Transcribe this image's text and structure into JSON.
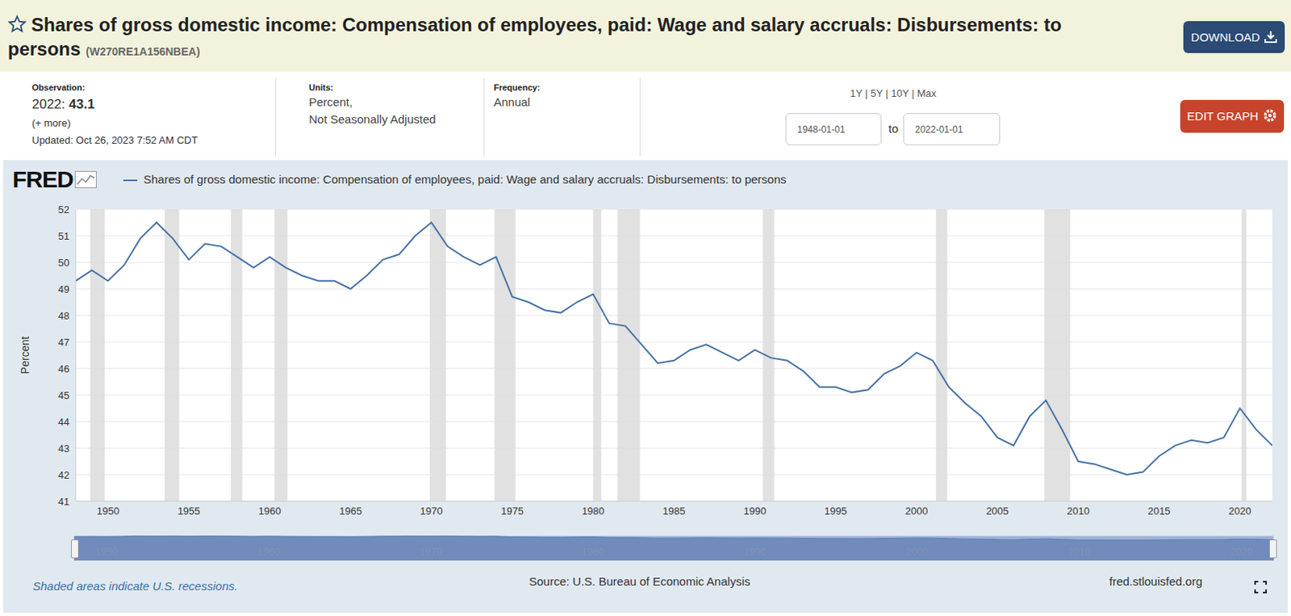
{
  "header": {
    "title": "Shares of gross domestic income: Compensation of employees, paid: Wage and salary accruals: Disbursements: to persons",
    "series_id": "(W270RE1A156NBEA)",
    "download": "DOWNLOAD"
  },
  "meta": {
    "observation_label": "Observation:",
    "observation_date": "2022:",
    "observation_value": 43.1,
    "more": "(+ more)",
    "updated": "Updated: Oct 26, 2023 7:52 AM CDT",
    "units_label": "Units:",
    "units": [
      "Percent,",
      "Not Seasonally Adjusted"
    ],
    "frequency_label": "Frequency:",
    "frequency": "Annual",
    "range_buttons": "1Y | 5Y | 10Y | Max",
    "date_from": "1948-01-01",
    "date_to_word": "to",
    "date_to": "2022-01-01",
    "edit_graph": "EDIT GRAPH"
  },
  "panel": {
    "logo": "FRED",
    "recession_note": "Shaded areas indicate U.S. recessions.",
    "source": "Source: U.S. Bureau of Economic Analysis",
    "site": "fred.stlouisfed.org"
  },
  "chart_data": {
    "type": "line",
    "y_label": "Percent",
    "x": [
      1948,
      1949,
      1950,
      1951,
      1952,
      1953,
      1954,
      1955,
      1956,
      1957,
      1958,
      1959,
      1960,
      1961,
      1962,
      1963,
      1964,
      1965,
      1966,
      1967,
      1968,
      1969,
      1970,
      1971,
      1972,
      1973,
      1974,
      1975,
      1976,
      1977,
      1978,
      1979,
      1980,
      1981,
      1982,
      1983,
      1984,
      1985,
      1986,
      1987,
      1988,
      1989,
      1990,
      1991,
      1992,
      1993,
      1994,
      1995,
      1996,
      1997,
      1998,
      1999,
      2000,
      2001,
      2002,
      2003,
      2004,
      2005,
      2006,
      2007,
      2008,
      2009,
      2010,
      2011,
      2012,
      2013,
      2014,
      2015,
      2016,
      2017,
      2018,
      2019,
      2020,
      2021,
      2022
    ],
    "series": [
      {
        "name": "Shares of gross domestic income: Compensation of employees, paid: Wage and salary accruals: Disbursements: to persons",
        "color": "#4572a7",
        "values": [
          49.3,
          49.7,
          49.3,
          49.9,
          50.9,
          51.5,
          50.9,
          50.1,
          50.7,
          50.6,
          50.2,
          49.8,
          50.2,
          49.8,
          49.5,
          49.3,
          49.3,
          49.0,
          49.5,
          50.1,
          50.3,
          51.0,
          51.5,
          50.6,
          50.2,
          49.9,
          50.2,
          48.7,
          48.5,
          48.2,
          48.1,
          48.5,
          48.8,
          47.7,
          47.6,
          46.9,
          46.2,
          46.3,
          46.7,
          46.9,
          46.6,
          46.3,
          46.7,
          46.4,
          46.3,
          45.9,
          45.3,
          45.3,
          45.1,
          45.2,
          45.8,
          46.1,
          46.6,
          46.3,
          45.3,
          44.7,
          44.2,
          43.4,
          43.1,
          44.2,
          44.8,
          43.7,
          42.5,
          42.4,
          42.2,
          42.0,
          42.1,
          42.7,
          43.1,
          43.3,
          43.2,
          43.4,
          44.5,
          43.7,
          43.1
        ]
      }
    ],
    "xlim": [
      1948,
      2022
    ],
    "xticks": [
      1950,
      1955,
      1960,
      1965,
      1970,
      1975,
      1980,
      1985,
      1990,
      1995,
      2000,
      2005,
      2010,
      2015,
      2020
    ],
    "ylim": [
      41,
      52
    ],
    "yticks": [
      41,
      42,
      43,
      44,
      45,
      46,
      47,
      48,
      49,
      50,
      51,
      52
    ],
    "grid": true,
    "recessions": [
      {
        "start": 1948.9,
        "end": 1949.8
      },
      {
        "start": 1953.5,
        "end": 1954.4
      },
      {
        "start": 1957.6,
        "end": 1958.3
      },
      {
        "start": 1960.3,
        "end": 1961.1
      },
      {
        "start": 1969.9,
        "end": 1970.9
      },
      {
        "start": 1973.9,
        "end": 1975.2
      },
      {
        "start": 1980.0,
        "end": 1980.5
      },
      {
        "start": 1981.5,
        "end": 1982.9
      },
      {
        "start": 1990.5,
        "end": 1991.2
      },
      {
        "start": 2001.2,
        "end": 2001.9
      },
      {
        "start": 2007.9,
        "end": 2009.5
      },
      {
        "start": 2020.1,
        "end": 2020.4
      }
    ],
    "navigator_ticks": [
      1950,
      1960,
      1970,
      1980,
      1990,
      2000,
      2010,
      2020
    ]
  }
}
